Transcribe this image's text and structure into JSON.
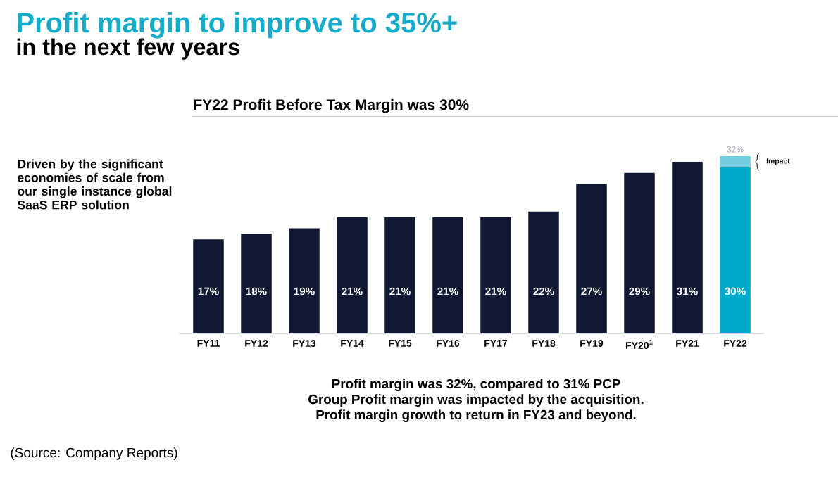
{
  "chart_data": {
    "type": "bar",
    "title": "Profit margin to improve to 35%+",
    "subtitle": "in the next few years",
    "categories": [
      "FY11",
      "FY12",
      "FY13",
      "FY14",
      "FY15",
      "FY16",
      "FY17",
      "FY18",
      "FY19",
      "FY20$^{1}$",
      "FY21",
      "FY22"
    ],
    "series": [
      {
        "colors": [
          "#111833",
          "#111833",
          "#111833",
          "#111833",
          "#111833",
          "#111833",
          "#111833",
          "#111833",
          "#111833",
          "#111833",
          "#111833",
          "#00a9c9"
        ],
        "values": [
          17,
          18,
          19,
          21,
          21,
          21,
          21,
          22,
          27,
          29,
          31,
          30
        ],
        "value_labels": [
          "17%",
          "18%",
          "19%",
          "21%",
          "21%",
          "21%",
          "21%",
          "22%",
          "27%",
          "29%",
          "31%",
          "30%"
        ]
      },
      {
        "color": "#74cde0",
        "values": [
          null,
          null,
          null,
          null,
          null,
          null,
          null,
          null,
          null,
          null,
          null,
          2
        ]
      }
    ],
    "stacked": true,
    "totals": [
      null,
      null,
      null,
      null,
      null,
      null,
      null,
      null,
      null,
      null,
      null,
      "32%"
    ],
    "tick_labels": "x",
    "annotations": [
      "FY22 Profit Before Tax Margin was 30%",
      "Driven by the significant economies of scale from our single instance global SaaS ERP solution",
      "Profit margin was 32%, compared to 31% PCP",
      "Group Profit margin was impacted by the acquisition.",
      "Profit margin growth to return in FY23 and beyond.",
      "(Source: Company Reports)",
      "Impact"
    ]
  }
}
